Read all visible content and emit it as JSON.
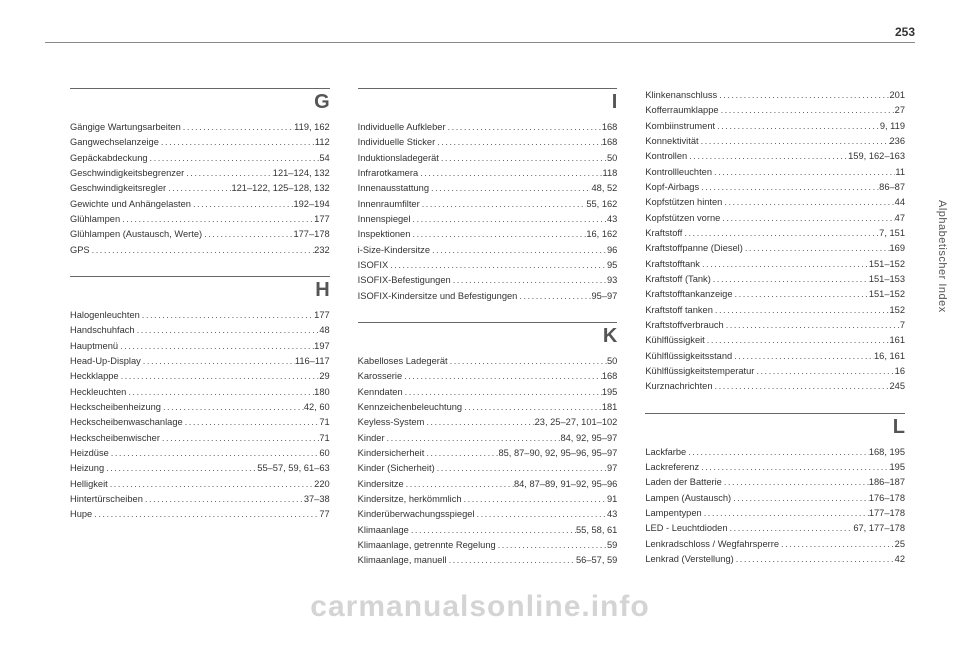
{
  "page_number": "253",
  "side_tab": "Alphabetischer Index",
  "watermark": "carmanualsonline.info",
  "columns": [
    {
      "sections": [
        {
          "letter": "G",
          "entries": [
            {
              "term": "Gängige Wartungsarbeiten",
              "page": "119, 162"
            },
            {
              "term": "Gangwechselanzeige",
              "page": "112"
            },
            {
              "term": "Gepäckabdeckung",
              "page": "54"
            },
            {
              "term": "Geschwindigkeitsbegrenzer",
              "page": "121–124, 132"
            },
            {
              "term": "Geschwindigkeitsregler",
              "page": "121–122, 125–128, 132"
            },
            {
              "term": "Gewichte und Anhängelasten",
              "page": "192–194"
            },
            {
              "term": "Glühlampen",
              "page": "177"
            },
            {
              "term": "Glühlampen (Austausch, Werte)",
              "page": "177–178"
            },
            {
              "term": "GPS",
              "page": "232"
            }
          ]
        },
        {
          "letter": "H",
          "entries": [
            {
              "term": "Halogenleuchten",
              "page": "177"
            },
            {
              "term": "Handschuhfach",
              "page": "48"
            },
            {
              "term": "Hauptmenü",
              "page": "197"
            },
            {
              "term": "Head-Up-Display",
              "page": "116–117"
            },
            {
              "term": "Heckklappe",
              "page": "29"
            },
            {
              "term": "Heckleuchten",
              "page": "180"
            },
            {
              "term": "Heckscheibenheizung",
              "page": "42, 60"
            },
            {
              "term": "Heckscheibenwaschanlage",
              "page": "71"
            },
            {
              "term": "Heckscheibenwischer",
              "page": "71"
            },
            {
              "term": "Heizdüse",
              "page": "60"
            },
            {
              "term": "Heizung",
              "page": "55–57, 59, 61–63"
            },
            {
              "term": "Helligkeit",
              "page": "220"
            },
            {
              "term": "Hintertürscheiben",
              "page": "37–38"
            },
            {
              "term": "Hupe",
              "page": "77"
            }
          ]
        }
      ]
    },
    {
      "sections": [
        {
          "letter": "I",
          "entries": [
            {
              "term": "Individuelle Aufkleber",
              "page": "168"
            },
            {
              "term": "Individuelle Sticker",
              "page": "168"
            },
            {
              "term": "Induktionsladegerät",
              "page": "50"
            },
            {
              "term": "Infrarotkamera",
              "page": "118"
            },
            {
              "term": "Innenausstattung",
              "page": "48, 52"
            },
            {
              "term": "Innenraumfilter",
              "page": "55, 162"
            },
            {
              "term": "Innenspiegel",
              "page": "43"
            },
            {
              "term": "Inspektionen",
              "page": "16, 162"
            },
            {
              "term": "i-Size-Kindersitze",
              "page": "96"
            },
            {
              "term": "ISOFIX",
              "page": "95"
            },
            {
              "term": "ISOFIX-Befestigungen",
              "page": "93"
            },
            {
              "term": "ISOFIX-Kindersitze und Befestigungen",
              "page": "95–97"
            }
          ]
        },
        {
          "letter": "K",
          "entries": [
            {
              "term": "Kabelloses Ladegerät",
              "page": "50"
            },
            {
              "term": "Karosserie",
              "page": "168"
            },
            {
              "term": "Kenndaten",
              "page": "195"
            },
            {
              "term": "Kennzeichenbeleuchtung",
              "page": "181"
            },
            {
              "term": "Keyless-System",
              "page": "23, 25–27, 101–102"
            },
            {
              "term": "Kinder",
              "page": "84, 92, 95–97"
            },
            {
              "term": "Kindersicherheit",
              "page": "85, 87–90, 92, 95–96, 95–97"
            },
            {
              "term": "Kinder (Sicherheit)",
              "page": "97"
            },
            {
              "term": "Kindersitze",
              "page": "84, 87–89, 91–92, 95–96"
            },
            {
              "term": "Kindersitze, herkömmlich",
              "page": "91"
            },
            {
              "term": "Kinderüberwachungsspiegel",
              "page": "43"
            },
            {
              "term": "Klimaanlage",
              "page": "55, 58, 61"
            },
            {
              "term": "Klimaanlage, getrennte Regelung",
              "page": "59"
            },
            {
              "term": "Klimaanlage, manuell",
              "page": "56–57, 59"
            }
          ]
        }
      ]
    },
    {
      "sections": [
        {
          "letter": "",
          "entries": [
            {
              "term": "Klinkenanschluss",
              "page": "201"
            },
            {
              "term": "Kofferraumklappe",
              "page": "27"
            },
            {
              "term": "Kombiinstrument",
              "page": "9, 119"
            },
            {
              "term": "Konnektivität",
              "page": "236"
            },
            {
              "term": "Kontrollen",
              "page": "159, 162–163"
            },
            {
              "term": "Kontrollleuchten",
              "page": "11"
            },
            {
              "term": "Kopf-Airbags",
              "page": "86–87"
            },
            {
              "term": "Kopfstützen hinten",
              "page": "44"
            },
            {
              "term": "Kopfstützen vorne",
              "page": "47"
            },
            {
              "term": "Kraftstoff",
              "page": "7, 151"
            },
            {
              "term": "Kraftstoffpanne (Diesel)",
              "page": "169"
            },
            {
              "term": "Kraftstofftank",
              "page": "151–152"
            },
            {
              "term": "Kraftstoff (Tank)",
              "page": "151–153"
            },
            {
              "term": "Kraftstofftankanzeige",
              "page": "151–152"
            },
            {
              "term": "Kraftstoff tanken",
              "page": "152"
            },
            {
              "term": "Kraftstoffverbrauch",
              "page": "7"
            },
            {
              "term": "Kühlflüssigkeit",
              "page": "161"
            },
            {
              "term": "Kühlflüssigkeitsstand",
              "page": "16, 161"
            },
            {
              "term": "Kühlflüssigkeitstemperatur",
              "page": "16"
            },
            {
              "term": "Kurznachrichten",
              "page": "245"
            }
          ]
        },
        {
          "letter": "L",
          "entries": [
            {
              "term": "Lackfarbe",
              "page": "168, 195"
            },
            {
              "term": "Lackreferenz",
              "page": "195"
            },
            {
              "term": "Laden der Batterie",
              "page": "186–187"
            },
            {
              "term": "Lampen (Austausch)",
              "page": "176–178"
            },
            {
              "term": "Lampentypen",
              "page": "177–178"
            },
            {
              "term": "LED - Leuchtdioden",
              "page": "67, 177–178"
            },
            {
              "term": "Lenkradschloss / Wegfahrsperre",
              "page": "25"
            },
            {
              "term": "Lenkrad (Verstellung)",
              "page": "42"
            }
          ]
        }
      ]
    }
  ]
}
